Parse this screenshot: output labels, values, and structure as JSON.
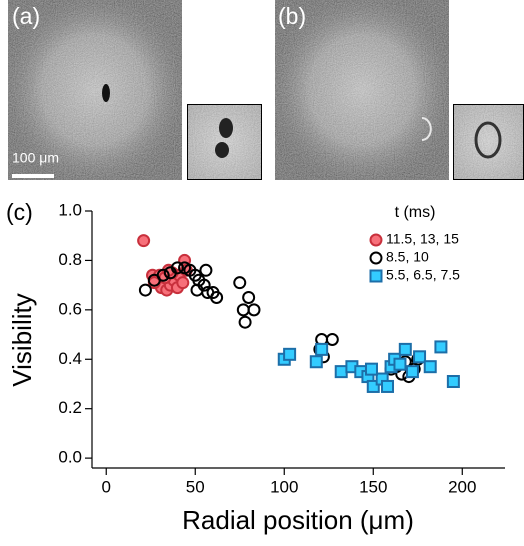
{
  "panels": {
    "a": {
      "label": "(a)",
      "scale_bar": "100 μm"
    },
    "b": {
      "label": "(b)"
    }
  },
  "chart_data": {
    "type": "scatter",
    "panel_label": "(c)",
    "x_label": "Radial position (μm)",
    "y_label": "Visibility",
    "legend_title": "t (ms)",
    "legend": "top-right",
    "xlim": [
      -8,
      224
    ],
    "ylim": [
      -0.04,
      1.0
    ],
    "xticks": [
      0,
      50,
      100,
      150,
      200
    ],
    "yticks": [
      {
        "value": 0,
        "label": "0.0"
      },
      0.2,
      0.4,
      0.6,
      0.8,
      {
        "value": 1,
        "label": "1.0"
      }
    ],
    "series": [
      {
        "name": "11.5, 13, 15",
        "color": "#f7707a",
        "stroke": "#c8303c",
        "marker": "circle",
        "x": [
          21,
          44,
          26,
          29,
          31,
          34,
          36,
          38,
          41,
          45,
          30,
          33,
          37,
          40,
          43,
          27,
          35
        ],
        "values": [
          0.88,
          0.8,
          0.74,
          0.72,
          0.69,
          0.68,
          0.7,
          0.72,
          0.74,
          0.76,
          0.74,
          0.73,
          0.75,
          0.69,
          0.71,
          0.71,
          0.76
        ]
      },
      {
        "name": "8.5, 10",
        "color": "none",
        "stroke": "#000000",
        "marker": "circle",
        "x": [
          22,
          27,
          32,
          36,
          40,
          44,
          47,
          50,
          52,
          55,
          57,
          60,
          62,
          56,
          51,
          75,
          78,
          77,
          80,
          83,
          121,
          127,
          120,
          122,
          163,
          166,
          170,
          173,
          168,
          175,
          160
        ],
        "values": [
          0.68,
          0.72,
          0.74,
          0.75,
          0.77,
          0.77,
          0.76,
          0.74,
          0.72,
          0.7,
          0.67,
          0.67,
          0.65,
          0.76,
          0.68,
          0.71,
          0.55,
          0.6,
          0.65,
          0.6,
          0.48,
          0.48,
          0.44,
          0.41,
          0.37,
          0.34,
          0.33,
          0.36,
          0.39,
          0.4,
          0.36
        ]
      },
      {
        "name": "5.5, 6.5, 7.5",
        "color": "#33ccff",
        "stroke": "#1c6ea8",
        "marker": "square",
        "x": [
          100,
          103,
          118,
          121,
          132,
          138,
          143,
          147,
          150,
          155,
          158,
          160,
          162,
          168,
          172,
          176,
          182,
          188,
          195,
          165,
          149
        ],
        "values": [
          0.4,
          0.42,
          0.39,
          0.44,
          0.35,
          0.37,
          0.35,
          0.33,
          0.29,
          0.32,
          0.29,
          0.37,
          0.4,
          0.44,
          0.35,
          0.41,
          0.37,
          0.45,
          0.31,
          0.38,
          0.36
        ]
      }
    ]
  }
}
